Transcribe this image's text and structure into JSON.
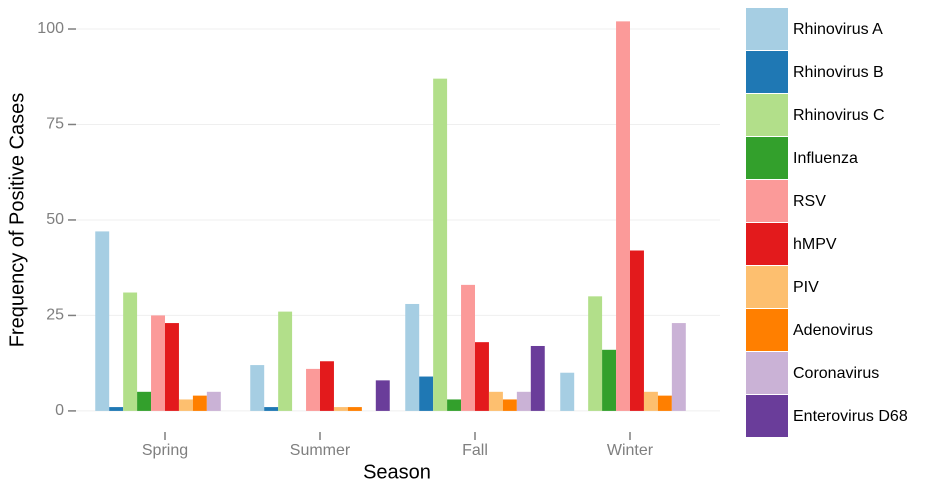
{
  "chart_data": {
    "type": "bar",
    "x_label": "Season",
    "y_label": "Frequency of Positive Cases",
    "categories": [
      "Spring",
      "Summer",
      "Fall",
      "Winter"
    ],
    "series": [
      {
        "name": "Rhinovirus A",
        "color": "#a6cee3",
        "values": [
          47,
          12,
          28,
          10
        ]
      },
      {
        "name": "Rhinovirus B",
        "color": "#1f78b4",
        "values": [
          1,
          1,
          9,
          0
        ]
      },
      {
        "name": "Rhinovirus C",
        "color": "#b2df8a",
        "values": [
          31,
          26,
          87,
          30
        ]
      },
      {
        "name": "Influenza",
        "color": "#33a02c",
        "values": [
          5,
          0,
          3,
          16
        ]
      },
      {
        "name": "RSV",
        "color": "#fb9a99",
        "values": [
          25,
          11,
          33,
          102
        ]
      },
      {
        "name": "hMPV",
        "color": "#e31a1c",
        "values": [
          23,
          13,
          18,
          42
        ]
      },
      {
        "name": "PIV",
        "color": "#fdbf6f",
        "values": [
          3,
          1,
          5,
          5
        ]
      },
      {
        "name": "Adenovirus",
        "color": "#ff7f00",
        "values": [
          4,
          1,
          3,
          4
        ]
      },
      {
        "name": "Coronavirus",
        "color": "#cab2d6",
        "values": [
          5,
          0,
          5,
          23
        ]
      },
      {
        "name": "Enterovirus D68",
        "color": "#6a3d9a",
        "values": [
          0,
          8,
          17,
          0
        ]
      }
    ],
    "ylim": [
      -5,
      105.5
    ],
    "yticks": [
      0,
      25,
      50,
      75,
      100
    ],
    "grid": true,
    "legend": "right"
  }
}
